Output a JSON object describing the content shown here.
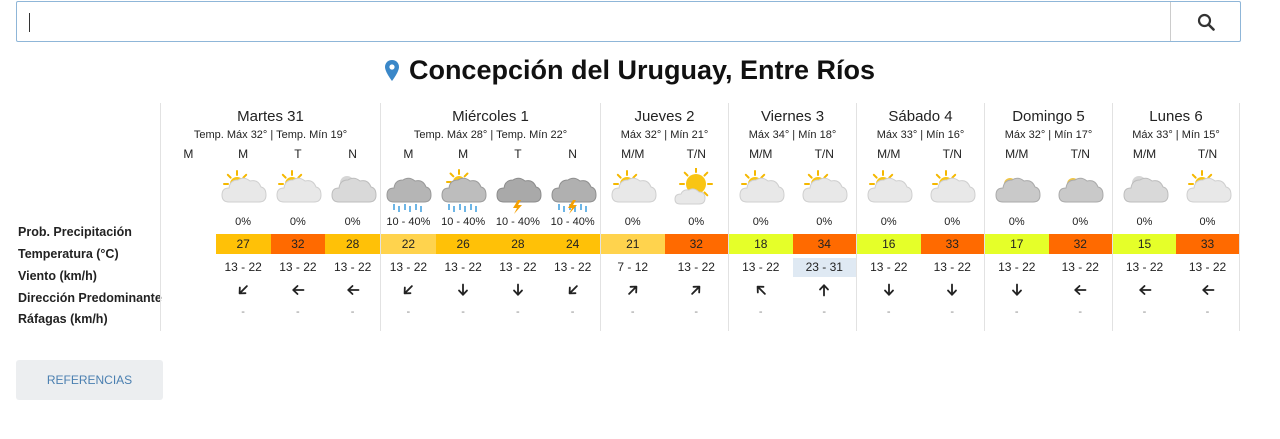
{
  "search": {
    "placeholder": "",
    "value": ""
  },
  "location": {
    "title": "Concepción del Uruguay, Entre Ríos"
  },
  "row_labels": [
    "Prob. Precipitación",
    "Temperatura (°C)",
    "Viento (km/h)",
    "Dirección Predominante",
    "Ráfagas (km/h)"
  ],
  "days": [
    {
      "name": "Martes 31",
      "temps": "Temp. Máx 32° | Temp. Mín 19°",
      "cols": [
        {
          "label": "M",
          "empty": true
        },
        {
          "label": "M",
          "icon": "partly-cloudy-icon",
          "prob": "0%",
          "temp": "27",
          "temp_color": "#ffc107",
          "wind": "13 - 22",
          "dir": 225,
          "gust": "-"
        },
        {
          "label": "T",
          "icon": "partly-cloudy-icon",
          "prob": "0%",
          "temp": "32",
          "temp_color": "#ff6a00",
          "wind": "13 - 22",
          "dir": 270,
          "gust": "-"
        },
        {
          "label": "N",
          "icon": "cloudy-night-icon",
          "prob": "0%",
          "temp": "28",
          "temp_color": "#ffc107",
          "wind": "13 - 22",
          "dir": 270,
          "gust": "-"
        }
      ]
    },
    {
      "name": "Miércoles 1",
      "temps": "Temp. Máx 28° | Temp. Mín 22°",
      "cols": [
        {
          "label": "M",
          "icon": "rain-icon",
          "prob": "10 - 40%",
          "temp": "22",
          "temp_color": "#ffd34d",
          "wind": "13 - 22",
          "dir": 225,
          "gust": "-"
        },
        {
          "label": "M",
          "icon": "sun-rain-icon",
          "prob": "10 - 40%",
          "temp": "26",
          "temp_color": "#ffc107",
          "wind": "13 - 22",
          "dir": 180,
          "gust": "-"
        },
        {
          "label": "T",
          "icon": "storm-icon",
          "prob": "10 - 40%",
          "temp": "28",
          "temp_color": "#ffc107",
          "wind": "13 - 22",
          "dir": 180,
          "gust": "-"
        },
        {
          "label": "N",
          "icon": "storm-rain-icon",
          "prob": "10 - 40%",
          "temp": "24",
          "temp_color": "#ffc107",
          "wind": "13 - 22",
          "dir": 225,
          "gust": "-"
        }
      ]
    },
    {
      "name": "Jueves 2",
      "temps": "Máx 32° | Mín 21°",
      "cols": [
        {
          "label": "M/M",
          "icon": "partly-cloudy-icon",
          "prob": "0%",
          "temp": "21",
          "temp_color": "#ffd34d",
          "wind": "7 - 12",
          "dir": 45,
          "gust": "-"
        },
        {
          "label": "T/N",
          "icon": "mostly-sunny-icon",
          "prob": "0%",
          "temp": "32",
          "temp_color": "#ff6a00",
          "wind": "13 - 22",
          "dir": 45,
          "gust": "-"
        }
      ]
    },
    {
      "name": "Viernes 3",
      "temps": "Máx 34° | Mín 18°",
      "cols": [
        {
          "label": "M/M",
          "icon": "partly-cloudy-icon",
          "prob": "0%",
          "temp": "18",
          "temp_color": "#e5ff29",
          "wind": "13 - 22",
          "dir": 315,
          "gust": "-"
        },
        {
          "label": "T/N",
          "icon": "partly-cloudy-icon",
          "prob": "0%",
          "temp": "34",
          "temp_color": "#ff6a00",
          "wind": "23 - 31",
          "wind_highlight": true,
          "dir": 0,
          "gust": "-"
        }
      ]
    },
    {
      "name": "Sábado 4",
      "temps": "Máx 33° | Mín 16°",
      "cols": [
        {
          "label": "M/M",
          "icon": "partly-cloudy-icon",
          "prob": "0%",
          "temp": "16",
          "temp_color": "#e5ff29",
          "wind": "13 - 22",
          "dir": 180,
          "gust": "-"
        },
        {
          "label": "T/N",
          "icon": "partly-cloudy-icon",
          "prob": "0%",
          "temp": "33",
          "temp_color": "#ff6a00",
          "wind": "13 - 22",
          "dir": 180,
          "gust": "-"
        }
      ]
    },
    {
      "name": "Domingo 5",
      "temps": "Máx 32° | Mín 17°",
      "cols": [
        {
          "label": "M/M",
          "icon": "cloudy-icon",
          "prob": "0%",
          "temp": "17",
          "temp_color": "#e5ff29",
          "wind": "13 - 22",
          "dir": 180,
          "gust": "-"
        },
        {
          "label": "T/N",
          "icon": "cloudy-icon",
          "prob": "0%",
          "temp": "32",
          "temp_color": "#ff6a00",
          "wind": "13 - 22",
          "dir": 270,
          "gust": "-"
        }
      ]
    },
    {
      "name": "Lunes 6",
      "temps": "Máx 33° | Mín 15°",
      "cols": [
        {
          "label": "M/M",
          "icon": "cloudy-night-icon",
          "prob": "0%",
          "temp": "15",
          "temp_color": "#e5ff29",
          "wind": "13 - 22",
          "dir": 270,
          "gust": "-"
        },
        {
          "label": "T/N",
          "icon": "partly-cloudy-icon",
          "prob": "0%",
          "temp": "33",
          "temp_color": "#ff6a00",
          "wind": "13 - 22",
          "dir": 270,
          "gust": "-"
        }
      ]
    }
  ],
  "references_label": "REFERENCIAS"
}
